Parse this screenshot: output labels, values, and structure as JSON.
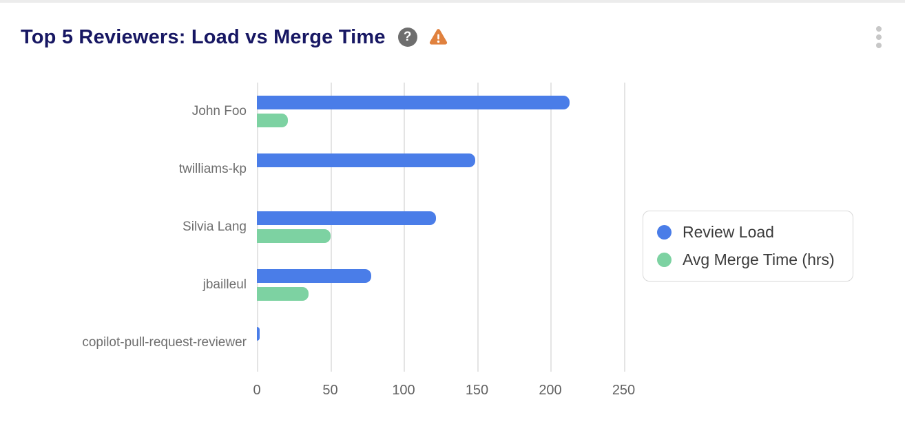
{
  "header": {
    "title": "Top 5 Reviewers: Load vs Merge Time",
    "icons": {
      "help": "question-mark-icon",
      "warning": "warning-triangle-icon",
      "menu": "kebab-menu-icon"
    }
  },
  "colors": {
    "review_load": "#4a7de8",
    "avg_merge_time": "#7dd2a2",
    "title_text": "#171763",
    "gridline": "#e4e4e4",
    "category_text": "#6e6e6e",
    "tick_text": "#616161",
    "legend_text": "#3b3b3b",
    "help_icon_bg": "#6e6e6e",
    "warning_icon": "#e0813e",
    "menu_dots": "#c7c7c7"
  },
  "chart_data": {
    "type": "bar",
    "orientation": "horizontal",
    "title": "Top 5 Reviewers: Load vs Merge Time",
    "categories": [
      "John Foo",
      "twilliams-kp",
      "Silvia Lang",
      "jbailleul",
      "copilot-pull-request-reviewer"
    ],
    "series": [
      {
        "name": "Review Load",
        "color": "#4a7de8",
        "values": [
          213,
          149,
          122,
          78,
          2
        ]
      },
      {
        "name": "Avg Merge Time (hrs)",
        "color": "#7dd2a2",
        "values": [
          21,
          0,
          50,
          35,
          0
        ]
      }
    ],
    "xlim": [
      0,
      250
    ],
    "x_ticks": [
      0,
      50,
      100,
      150,
      200,
      250
    ],
    "grid": true,
    "legend_position": "right"
  },
  "legend": {
    "items": [
      {
        "label": "Review Load",
        "color": "#4a7de8"
      },
      {
        "label": "Avg Merge Time (hrs)",
        "color": "#7dd2a2"
      }
    ]
  }
}
